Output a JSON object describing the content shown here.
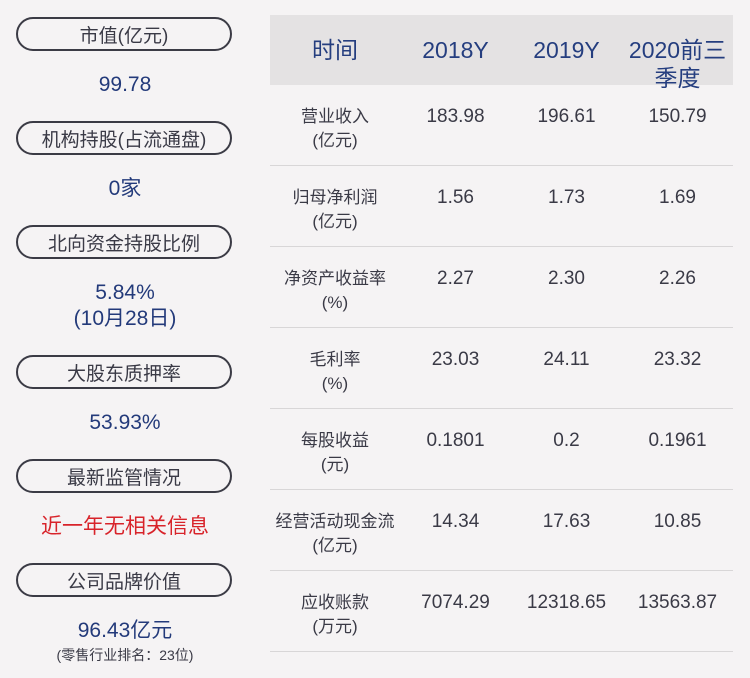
{
  "left_panel": {
    "items": [
      {
        "label": "市值(亿元)",
        "value": "99.78"
      },
      {
        "label": "机构持股(占流通盘)",
        "value": "0家"
      },
      {
        "label": "北向资金持股比例",
        "value": "5.84%",
        "value2": "(10月28日)"
      },
      {
        "label": "大股东质押率",
        "value": "53.93%"
      },
      {
        "label": "最新监管情况",
        "value": "近一年无相关信息"
      },
      {
        "label": "公司品牌价值",
        "value": "96.43亿元",
        "note": "(零售行业排名：23位)"
      }
    ]
  },
  "table": {
    "headers": [
      "时间",
      "2018Y",
      "2019Y",
      "2020前三季度"
    ],
    "rows": [
      {
        "label1": "营业收入",
        "label2": "(亿元)",
        "values": [
          "183.98",
          "196.61",
          "150.79"
        ]
      },
      {
        "label1": "归母净利润",
        "label2": "(亿元)",
        "values": [
          "1.56",
          "1.73",
          "1.69"
        ]
      },
      {
        "label1": "净资产收益率",
        "label2": "(%)",
        "values": [
          "2.27",
          "2.30",
          "2.26"
        ]
      },
      {
        "label1": "毛利率",
        "label2": "(%)",
        "values": [
          "23.03",
          "24.11",
          "23.32"
        ]
      },
      {
        "label1": "每股收益",
        "label2": "(元)",
        "values": [
          "0.1801",
          "0.2",
          "0.1961"
        ]
      },
      {
        "label1": "经营活动现金流",
        "label2": "(亿元)",
        "values": [
          "14.34",
          "17.63",
          "10.85"
        ]
      },
      {
        "label1": "应收账款",
        "label2": "(万元)",
        "values": [
          "7074.29",
          "12318.65",
          "13563.87"
        ]
      }
    ]
  },
  "colors": {
    "background": "#f5f3f4",
    "value_blue": "#233a7a",
    "header_blue": "#253e7f",
    "alert_red": "#d8232a",
    "header_bg": "#e4e2e3"
  }
}
